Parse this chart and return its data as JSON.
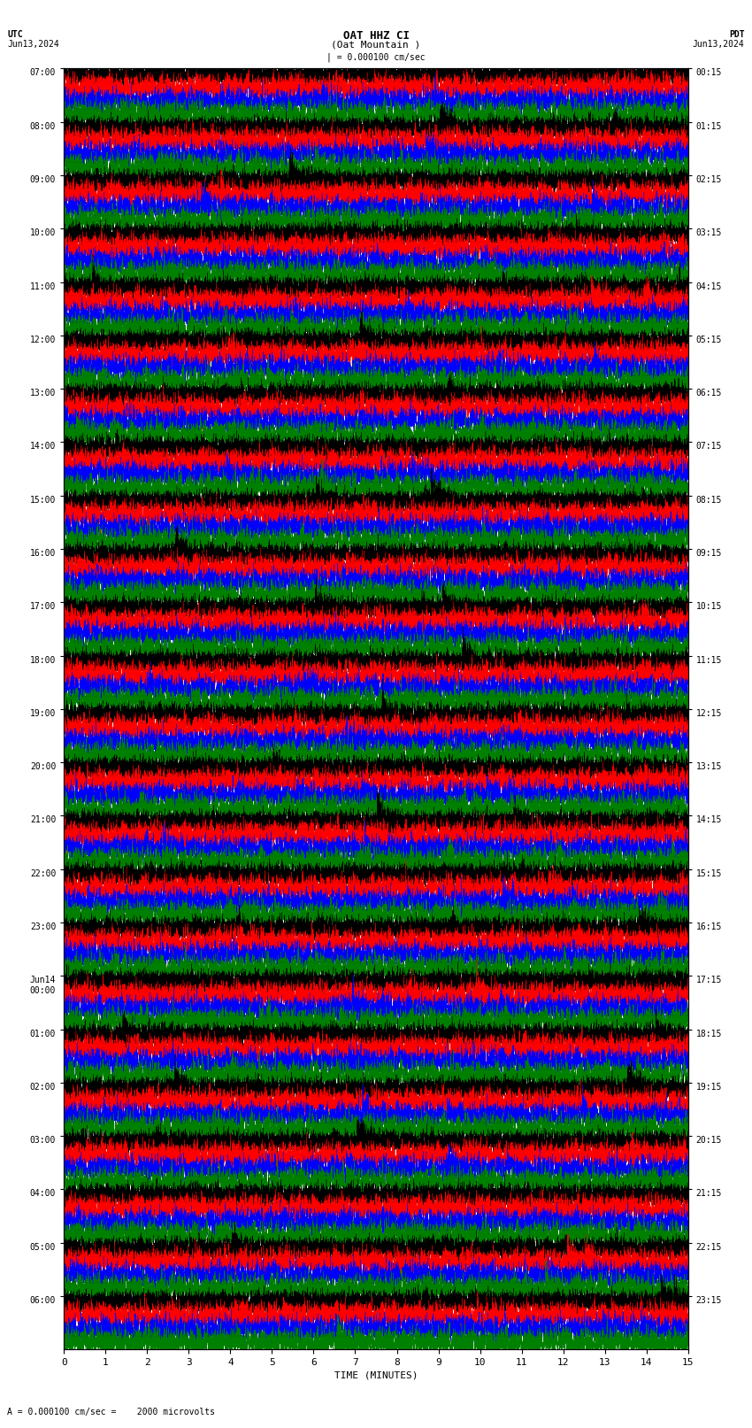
{
  "title_line1": "OAT HHZ CI",
  "title_line2": "(Oat Mountain )",
  "scale_text": "| = 0.000100 cm/sec",
  "left_label_top": "UTC",
  "left_label_bot": "Jun13,2024",
  "right_label_top": "PDT",
  "right_label_bot": "Jun13,2024",
  "bottom_label": "TIME (MINUTES)",
  "scale_note": "A = 0.000100 cm/sec =    2000 microvolts",
  "left_times": [
    "07:00",
    "08:00",
    "09:00",
    "10:00",
    "11:00",
    "12:00",
    "13:00",
    "14:00",
    "15:00",
    "16:00",
    "17:00",
    "18:00",
    "19:00",
    "20:00",
    "21:00",
    "22:00",
    "23:00",
    "Jun14\n00:00",
    "01:00",
    "02:00",
    "03:00",
    "04:00",
    "05:00",
    "06:00"
  ],
  "right_times": [
    "00:15",
    "01:15",
    "02:15",
    "03:15",
    "04:15",
    "05:15",
    "06:15",
    "07:15",
    "08:15",
    "09:15",
    "10:15",
    "11:15",
    "12:15",
    "13:15",
    "14:15",
    "15:15",
    "16:15",
    "17:15",
    "18:15",
    "19:15",
    "20:15",
    "21:15",
    "22:15",
    "23:15"
  ],
  "n_rows": 24,
  "n_subrows": 4,
  "n_minutes": 15,
  "sample_rate": 100,
  "colors": [
    "black",
    "red",
    "blue",
    "green"
  ],
  "background_color": "white",
  "figsize": [
    8.5,
    16.13
  ],
  "dpi": 100,
  "tick_positions": [
    0,
    1,
    2,
    3,
    4,
    5,
    6,
    7,
    8,
    9,
    10,
    11,
    12,
    13,
    14,
    15
  ],
  "x_label_fontsize": 8,
  "y_label_fontsize": 7,
  "title_fontsize": 9,
  "lw": 0.25
}
